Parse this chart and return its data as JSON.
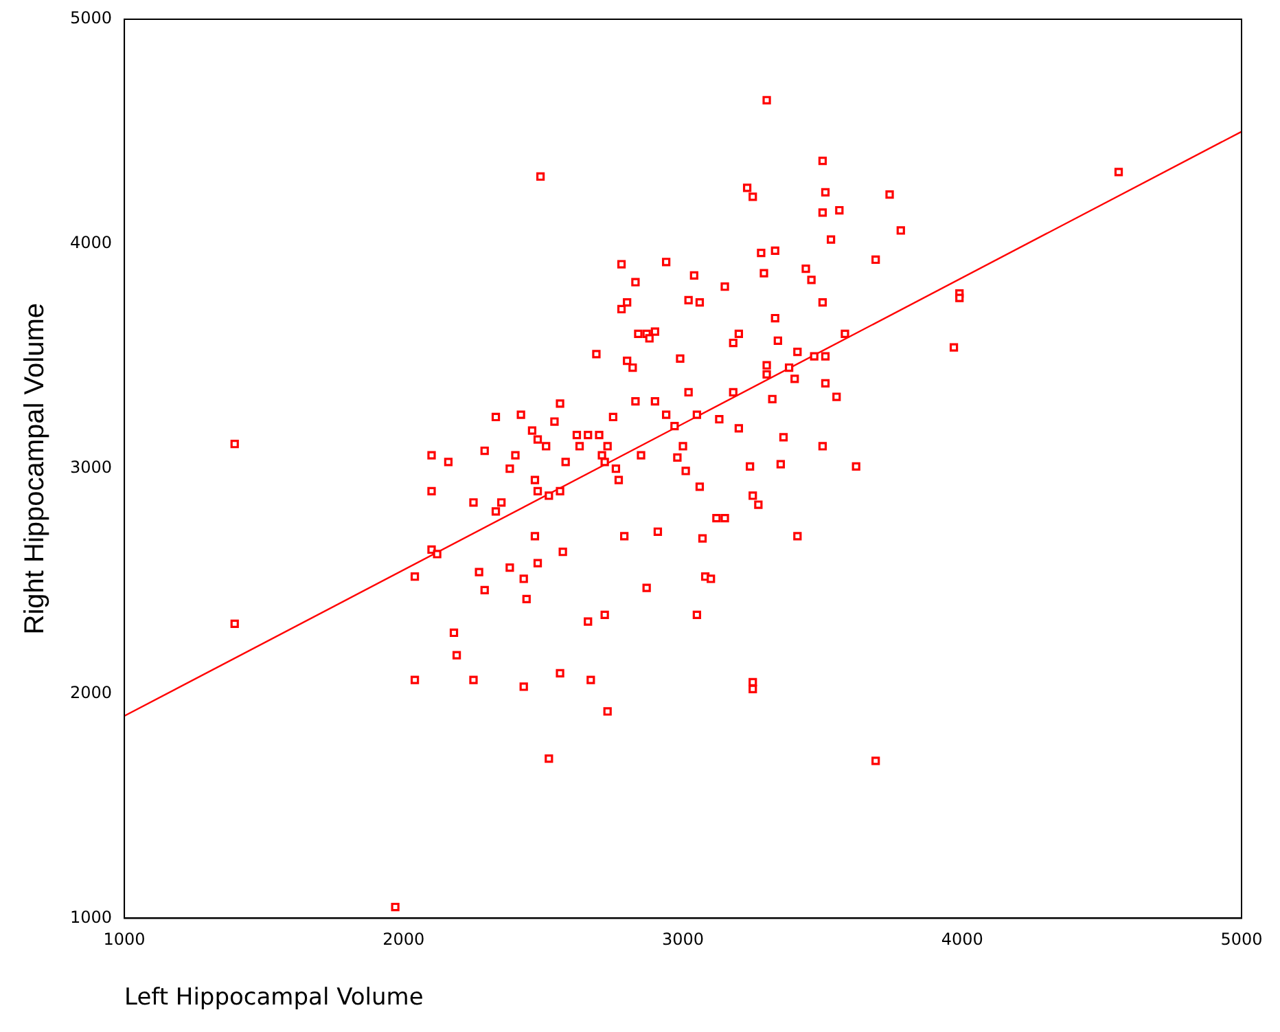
{
  "chart_data": {
    "type": "scatter",
    "xlabel": "Left Hippocampal Volume",
    "ylabel": "Right Hippocampal Volume",
    "xlim": [
      1000,
      5000
    ],
    "ylim": [
      1000,
      5000
    ],
    "xticks": [
      1000,
      2000,
      3000,
      4000,
      5000
    ],
    "yticks": [
      1000,
      2000,
      3000,
      4000,
      5000
    ],
    "grid": false,
    "legend": false,
    "marker": "square",
    "series": [
      {
        "color": "#ff0000",
        "x": [
          1395,
          1395,
          1970,
          2490,
          3300,
          4560,
          3990,
          3990,
          3970,
          3690,
          2520,
          3250,
          3250,
          2730,
          2040,
          2250,
          2430,
          2560,
          2670,
          2190,
          2180,
          2100,
          2040,
          2120,
          2660,
          2720,
          3050,
          3410,
          3120,
          2870,
          2910,
          2790,
          2270,
          2290,
          2440,
          2380,
          2430,
          2480,
          2470,
          2570,
          2250,
          2330,
          2350,
          2100,
          2100,
          2160,
          2290,
          2330,
          2380,
          2400,
          2420,
          2460,
          2480,
          2510,
          2540,
          2560,
          2470,
          2480,
          2520,
          2560,
          2580,
          2620,
          2630,
          2660,
          2690,
          2700,
          2710,
          2720,
          2730,
          2750,
          2760,
          2770,
          2780,
          2780,
          2800,
          2800,
          2820,
          2830,
          2830,
          2840,
          2850,
          2870,
          2880,
          2900,
          2900,
          2940,
          2940,
          2970,
          2990,
          3000,
          3010,
          3020,
          3020,
          3040,
          3050,
          3060,
          3070,
          3080,
          3100,
          3130,
          3150,
          3150,
          3180,
          3180,
          3200,
          3230,
          3250,
          3240,
          3250,
          3270,
          3280,
          3290,
          3300,
          3300,
          3320,
          3330,
          3330,
          3340,
          3350,
          3360,
          3380,
          3400,
          3410,
          3440,
          3460,
          3470,
          3500,
          3500,
          3510,
          3500,
          3510,
          3510,
          3530,
          3560,
          3550,
          3580,
          3620,
          3690,
          3740,
          3780,
          3500,
          3200,
          2980,
          3060
        ],
        "values": [
          3110,
          2310,
          1050,
          4300,
          4640,
          4320,
          3780,
          3760,
          3540,
          1700,
          1710,
          2050,
          2020,
          1920,
          2060,
          2060,
          2030,
          2090,
          2060,
          2170,
          2270,
          2640,
          2520,
          2620,
          2320,
          2350,
          2350,
          2700,
          2780,
          2470,
          2720,
          2700,
          2540,
          2460,
          2420,
          2560,
          2510,
          2580,
          2700,
          2630,
          2850,
          2810,
          2850,
          3060,
          2900,
          3030,
          3080,
          3230,
          3000,
          3060,
          3240,
          3170,
          3130,
          3100,
          3210,
          3290,
          2950,
          2900,
          2880,
          2900,
          3030,
          3150,
          3100,
          3150,
          3510,
          3150,
          3060,
          3030,
          3100,
          3230,
          3000,
          2950,
          3710,
          3910,
          3740,
          3480,
          3450,
          3300,
          3830,
          3600,
          3060,
          3600,
          3580,
          3610,
          3300,
          3920,
          3240,
          3190,
          3490,
          3100,
          2990,
          3340,
          3750,
          3860,
          3240,
          3740,
          2690,
          2520,
          2510,
          3220,
          3810,
          2780,
          3340,
          3560,
          3600,
          4250,
          4210,
          3010,
          2880,
          2840,
          3960,
          3870,
          3460,
          3420,
          3310,
          3970,
          3670,
          3570,
          3020,
          3140,
          3450,
          3400,
          3520,
          3890,
          3840,
          3500,
          4370,
          4140,
          4230,
          3740,
          3500,
          3380,
          4020,
          4150,
          3320,
          3600,
          3010,
          3930,
          4220,
          4060,
          3100,
          3180,
          3050,
          2920
        ]
      },
      {
        "type": "line",
        "color": "#ff0000",
        "marker": "none",
        "x": [
          1000,
          5000
        ],
        "values": [
          1900,
          4500
        ]
      }
    ]
  }
}
